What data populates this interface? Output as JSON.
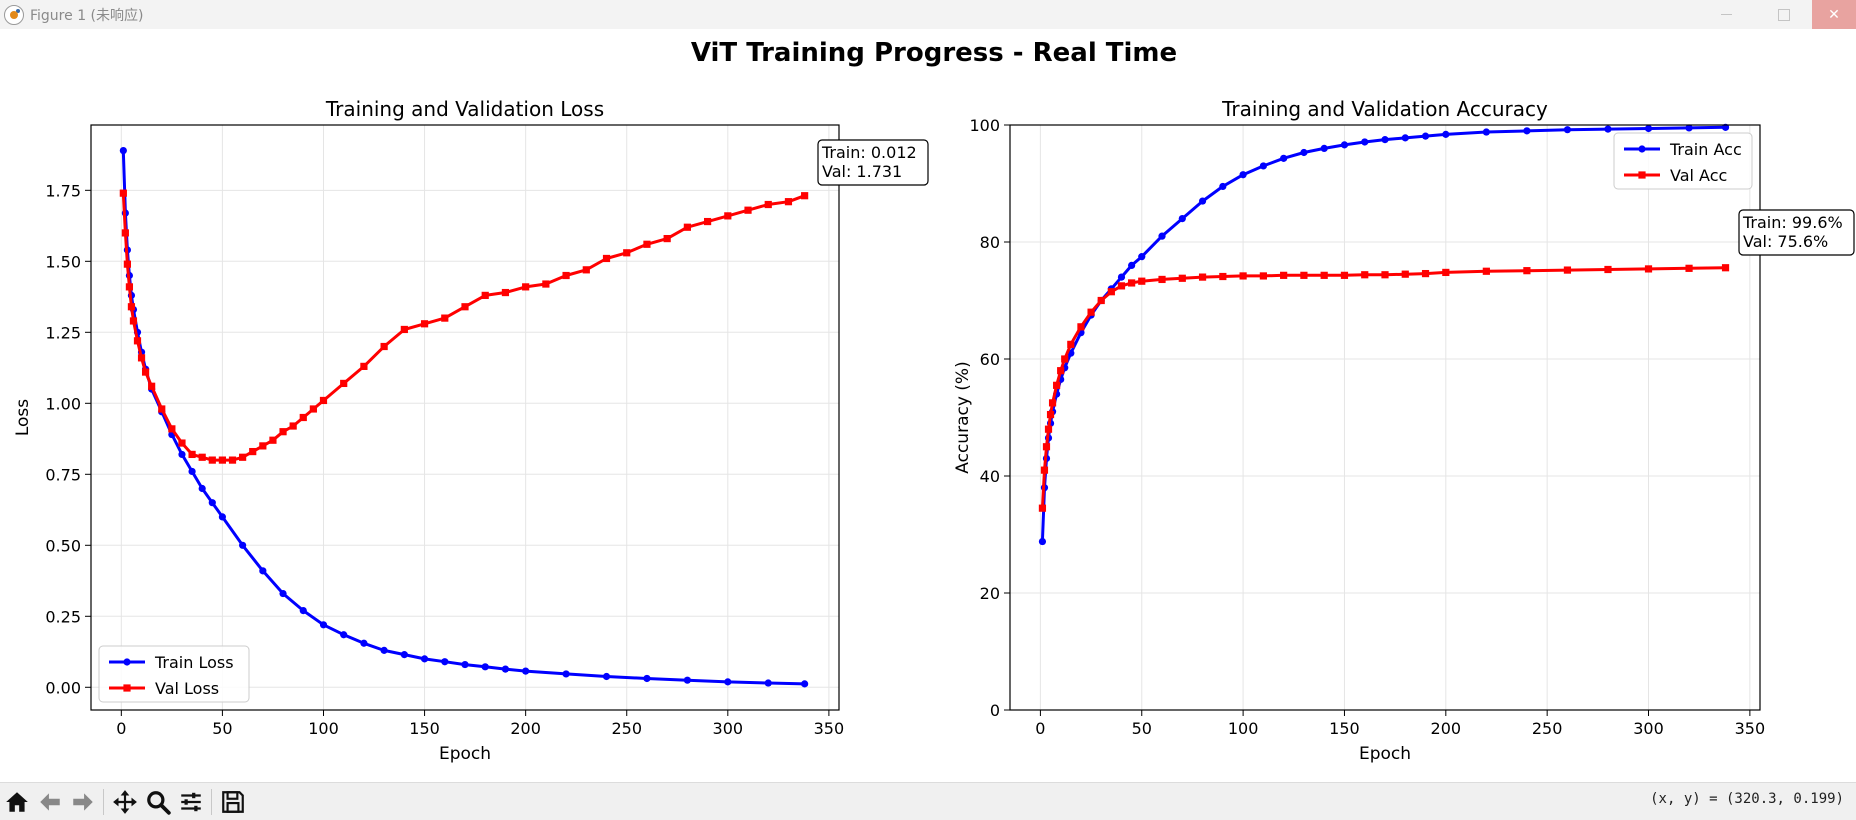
{
  "window": {
    "title": "Figure 1 (未响应)"
  },
  "figure": {
    "suptitle": "ViT Training Progress - Real Time"
  },
  "toolbar": {
    "coords": "(x, y) = (320.3, 0.199)",
    "tools": [
      "home-icon",
      "back-icon",
      "forward-icon",
      "pan-icon",
      "zoom-icon",
      "configure-icon",
      "save-icon"
    ]
  },
  "colors": {
    "train": "#0000ff",
    "val": "#ff0000"
  },
  "chart_data": [
    {
      "type": "line",
      "title": "Training and Validation Loss",
      "xlabel": "Epoch",
      "ylabel": "Loss",
      "xlim": [
        -15,
        355
      ],
      "ylim": [
        -0.08,
        1.98
      ],
      "xticks": [
        0,
        50,
        100,
        150,
        200,
        250,
        300,
        350
      ],
      "yticks": [
        0.0,
        0.25,
        0.5,
        0.75,
        1.0,
        1.25,
        1.5,
        1.75
      ],
      "ytick_labels": [
        "0.00",
        "0.25",
        "0.50",
        "0.75",
        "1.00",
        "1.25",
        "1.50",
        "1.75"
      ],
      "xtick_labels": [
        "0",
        "50",
        "100",
        "150",
        "200",
        "250",
        "300",
        "350"
      ],
      "grid": true,
      "legend": "lower-left",
      "annotation": [
        "Train: 0.012",
        "Val: 1.731"
      ],
      "series": [
        {
          "name": "Train Loss",
          "marker": "circle",
          "x": [
            1,
            2,
            3,
            4,
            5,
            6,
            8,
            10,
            12,
            15,
            20,
            25,
            30,
            35,
            40,
            45,
            50,
            60,
            70,
            80,
            90,
            100,
            110,
            120,
            130,
            140,
            150,
            160,
            170,
            180,
            190,
            200,
            220,
            240,
            260,
            280,
            300,
            320,
            338
          ],
          "values": [
            1.89,
            1.67,
            1.54,
            1.45,
            1.38,
            1.33,
            1.25,
            1.18,
            1.12,
            1.05,
            0.97,
            0.89,
            0.82,
            0.76,
            0.7,
            0.65,
            0.6,
            0.5,
            0.41,
            0.33,
            0.27,
            0.22,
            0.185,
            0.155,
            0.13,
            0.115,
            0.1,
            0.09,
            0.08,
            0.072,
            0.064,
            0.057,
            0.047,
            0.038,
            0.031,
            0.025,
            0.019,
            0.015,
            0.012
          ]
        },
        {
          "name": "Val Loss",
          "marker": "square",
          "x": [
            1,
            2,
            3,
            4,
            5,
            6,
            8,
            10,
            12,
            15,
            20,
            25,
            30,
            35,
            40,
            45,
            50,
            55,
            60,
            65,
            70,
            75,
            80,
            85,
            90,
            95,
            100,
            110,
            120,
            130,
            140,
            150,
            160,
            170,
            180,
            190,
            200,
            210,
            220,
            230,
            240,
            250,
            260,
            270,
            280,
            290,
            300,
            310,
            320,
            330,
            338
          ],
          "values": [
            1.74,
            1.6,
            1.49,
            1.41,
            1.34,
            1.29,
            1.22,
            1.16,
            1.11,
            1.06,
            0.98,
            0.91,
            0.86,
            0.82,
            0.81,
            0.8,
            0.8,
            0.8,
            0.81,
            0.83,
            0.85,
            0.87,
            0.9,
            0.92,
            0.95,
            0.98,
            1.01,
            1.07,
            1.13,
            1.2,
            1.26,
            1.28,
            1.3,
            1.34,
            1.38,
            1.39,
            1.41,
            1.42,
            1.45,
            1.47,
            1.51,
            1.53,
            1.56,
            1.58,
            1.62,
            1.64,
            1.66,
            1.68,
            1.7,
            1.71,
            1.731
          ]
        }
      ]
    },
    {
      "type": "line",
      "title": "Training and Validation Accuracy",
      "xlabel": "Epoch",
      "ylabel": "Accuracy (%)",
      "xlim": [
        -15,
        355
      ],
      "ylim": [
        0,
        100
      ],
      "xticks": [
        0,
        50,
        100,
        150,
        200,
        250,
        300,
        350
      ],
      "yticks": [
        0,
        20,
        40,
        60,
        80,
        100
      ],
      "ytick_labels": [
        "0",
        "20",
        "40",
        "60",
        "80",
        "100"
      ],
      "xtick_labels": [
        "0",
        "50",
        "100",
        "150",
        "200",
        "250",
        "300",
        "350"
      ],
      "grid": true,
      "legend": "upper-right",
      "annotation": [
        "Train: 99.6%",
        "Val: 75.6%"
      ],
      "series": [
        {
          "name": "Train Acc",
          "marker": "circle",
          "x": [
            1,
            2,
            3,
            4,
            5,
            6,
            8,
            10,
            12,
            15,
            20,
            25,
            30,
            35,
            40,
            45,
            50,
            60,
            70,
            80,
            90,
            100,
            110,
            120,
            130,
            140,
            150,
            160,
            170,
            180,
            190,
            200,
            220,
            240,
            260,
            280,
            300,
            320,
            338
          ],
          "values": [
            28.8,
            38.0,
            43.0,
            46.5,
            49.0,
            51.0,
            54.0,
            56.5,
            58.5,
            61.0,
            64.5,
            67.5,
            70.0,
            72.0,
            74.0,
            76.0,
            77.5,
            81.0,
            84.0,
            87.0,
            89.5,
            91.5,
            93.0,
            94.3,
            95.3,
            96.0,
            96.6,
            97.1,
            97.5,
            97.8,
            98.1,
            98.4,
            98.8,
            99.0,
            99.2,
            99.3,
            99.4,
            99.5,
            99.6
          ]
        },
        {
          "name": "Val Acc",
          "marker": "square",
          "x": [
            1,
            2,
            3,
            4,
            5,
            6,
            8,
            10,
            12,
            15,
            20,
            25,
            30,
            35,
            40,
            45,
            50,
            60,
            70,
            80,
            90,
            100,
            110,
            120,
            130,
            140,
            150,
            160,
            170,
            180,
            190,
            200,
            220,
            240,
            260,
            280,
            300,
            320,
            338
          ],
          "values": [
            34.5,
            41.0,
            45.0,
            48.0,
            50.5,
            52.5,
            55.5,
            58.0,
            60.0,
            62.5,
            65.5,
            68.0,
            70.0,
            71.5,
            72.5,
            73.0,
            73.3,
            73.6,
            73.8,
            74.0,
            74.1,
            74.2,
            74.2,
            74.3,
            74.3,
            74.3,
            74.3,
            74.4,
            74.4,
            74.5,
            74.6,
            74.8,
            75.0,
            75.1,
            75.2,
            75.3,
            75.4,
            75.5,
            75.6
          ]
        }
      ]
    }
  ]
}
